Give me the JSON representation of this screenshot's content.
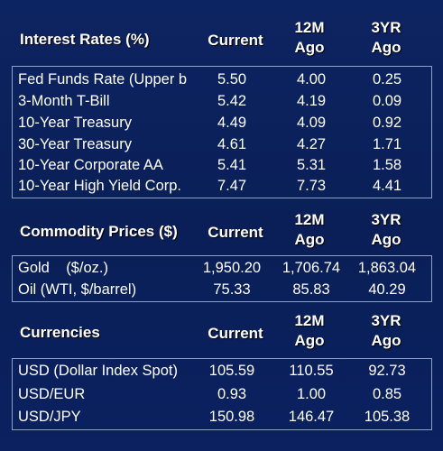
{
  "interest": {
    "title": "Interest Rates (%)",
    "col_current": "Current",
    "col_12m_a": "12M",
    "col_12m_b": "Ago",
    "col_3yr_a": "3YR",
    "col_3yr_b": "Ago",
    "rows": [
      {
        "label": "Fed Funds Rate (Upper b",
        "current": "5.50",
        "m12": "4.00",
        "y3": "0.25"
      },
      {
        "label": "3-Month T-Bill",
        "current": "5.42",
        "m12": "4.19",
        "y3": "0.09"
      },
      {
        "label": "10-Year Treasury",
        "current": "4.49",
        "m12": "4.09",
        "y3": "0.92"
      },
      {
        "label": "30-Year Treasury",
        "current": "4.61",
        "m12": "4.27",
        "y3": "1.71"
      },
      {
        "label": "10-Year Corporate AA",
        "current": "5.41",
        "m12": "5.31",
        "y3": "1.58"
      },
      {
        "label": "10-Year High Yield Corp.",
        "current": "7.47",
        "m12": "7.73",
        "y3": "4.41"
      }
    ]
  },
  "commodity": {
    "title": "Commodity Prices ($)",
    "col_current": "Current",
    "col_12m_a": "12M",
    "col_12m_b": "Ago",
    "col_3yr_a": "3YR",
    "col_3yr_b": "Ago",
    "rows": [
      {
        "label": "Gold    ($/oz.)",
        "current": "1,950.20",
        "m12": "1,706.74",
        "y3": "1,863.04"
      },
      {
        "label": "Oil (WTI, $/barrel)",
        "current": "75.33",
        "m12": "85.83",
        "y3": "40.29"
      }
    ]
  },
  "currencies": {
    "title": "Currencies",
    "col_current": "Current",
    "col_12m_a": "12M",
    "col_12m_b": "Ago",
    "col_3yr_a": "3YR",
    "col_3yr_b": "Ago",
    "rows": [
      {
        "label": "USD (Dollar Index Spot)",
        "current": "105.59",
        "m12": "110.55",
        "y3": "92.73"
      },
      {
        "label": "USD/EUR",
        "current": "0.93",
        "m12": "1.00",
        "y3": "0.85"
      },
      {
        "label": "USD/JPY",
        "current": "150.98",
        "m12": "146.47",
        "y3": "105.38"
      }
    ]
  }
}
